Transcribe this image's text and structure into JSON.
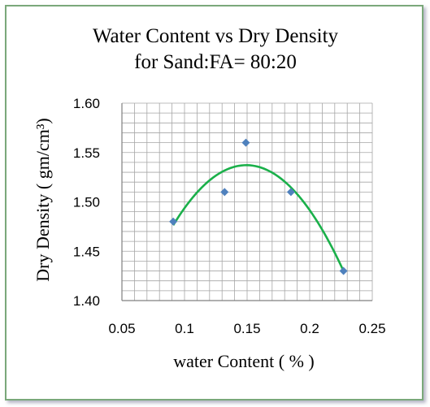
{
  "chart_data": {
    "type": "scatter",
    "title_line1": "Water Content vs Dry Density",
    "title_line2": "for Sand:FA= 80:20",
    "xlabel": "water Content ( % )",
    "ylabel": "Dry Density ( gm/cm³)",
    "xlim": [
      0.05,
      0.25
    ],
    "ylim": [
      1.4,
      1.6
    ],
    "x_tick_labels": [
      "0.05",
      "0.1",
      "0.15",
      "0.2",
      "0.25"
    ],
    "y_tick_labels": [
      "1.40",
      "1.45",
      "1.50",
      "1.55",
      "1.60"
    ],
    "grid": true,
    "points": [
      {
        "x": 0.091,
        "y": 1.48
      },
      {
        "x": 0.132,
        "y": 1.51
      },
      {
        "x": 0.149,
        "y": 1.56
      },
      {
        "x": 0.185,
        "y": 1.51
      },
      {
        "x": 0.227,
        "y": 1.43
      }
    ],
    "trendline": {
      "type": "polynomial",
      "x_range": [
        0.091,
        0.227
      ],
      "colors": {
        "line": "#1ab04a"
      }
    },
    "colors": {
      "marker": "#4f81bd",
      "grid": "#a6a6a6",
      "frame": "#7aa87a"
    }
  }
}
